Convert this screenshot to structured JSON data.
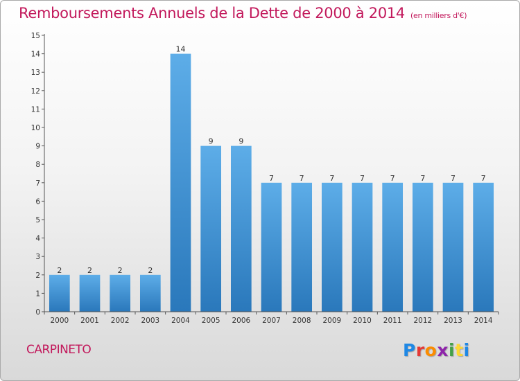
{
  "header": {
    "title": "Remboursements Annuels de la Dette de 2000 à 2014",
    "unit": "(en milliers d'€)"
  },
  "footer": {
    "commune": "CARPINETO",
    "logo_letters": [
      "P",
      "r",
      "o",
      "x",
      "i",
      "t",
      "i"
    ],
    "logo_colors": [
      "#1e88e5",
      "#e53935",
      "#fb8c00",
      "#8e24aa",
      "#43a047",
      "#fdd835",
      "#1e88e5"
    ]
  },
  "chart_data": {
    "type": "bar",
    "title": "Remboursements Annuels de la Dette de 2000 à 2014",
    "xlabel": "",
    "ylabel": "",
    "categories": [
      "2000",
      "2001",
      "2002",
      "2003",
      "2004",
      "2005",
      "2006",
      "2007",
      "2008",
      "2009",
      "2010",
      "2011",
      "2012",
      "2013",
      "2014"
    ],
    "values": [
      2,
      2,
      2,
      2,
      14,
      9,
      9,
      7,
      7,
      7,
      7,
      7,
      7,
      7,
      7
    ],
    "data_labels": [
      "2",
      "2",
      "2",
      "2",
      "14",
      "9",
      "9",
      "7",
      "7",
      "7",
      "7",
      "7",
      "7",
      "7",
      "7"
    ],
    "ylim": [
      0,
      15
    ],
    "yticks": [
      0,
      1,
      2,
      3,
      4,
      5,
      6,
      7,
      8,
      9,
      10,
      11,
      12,
      13,
      14,
      15
    ],
    "grid": false,
    "legend": "none",
    "bar_color_top": "#5dade8",
    "bar_color_bottom": "#2a78bb"
  }
}
